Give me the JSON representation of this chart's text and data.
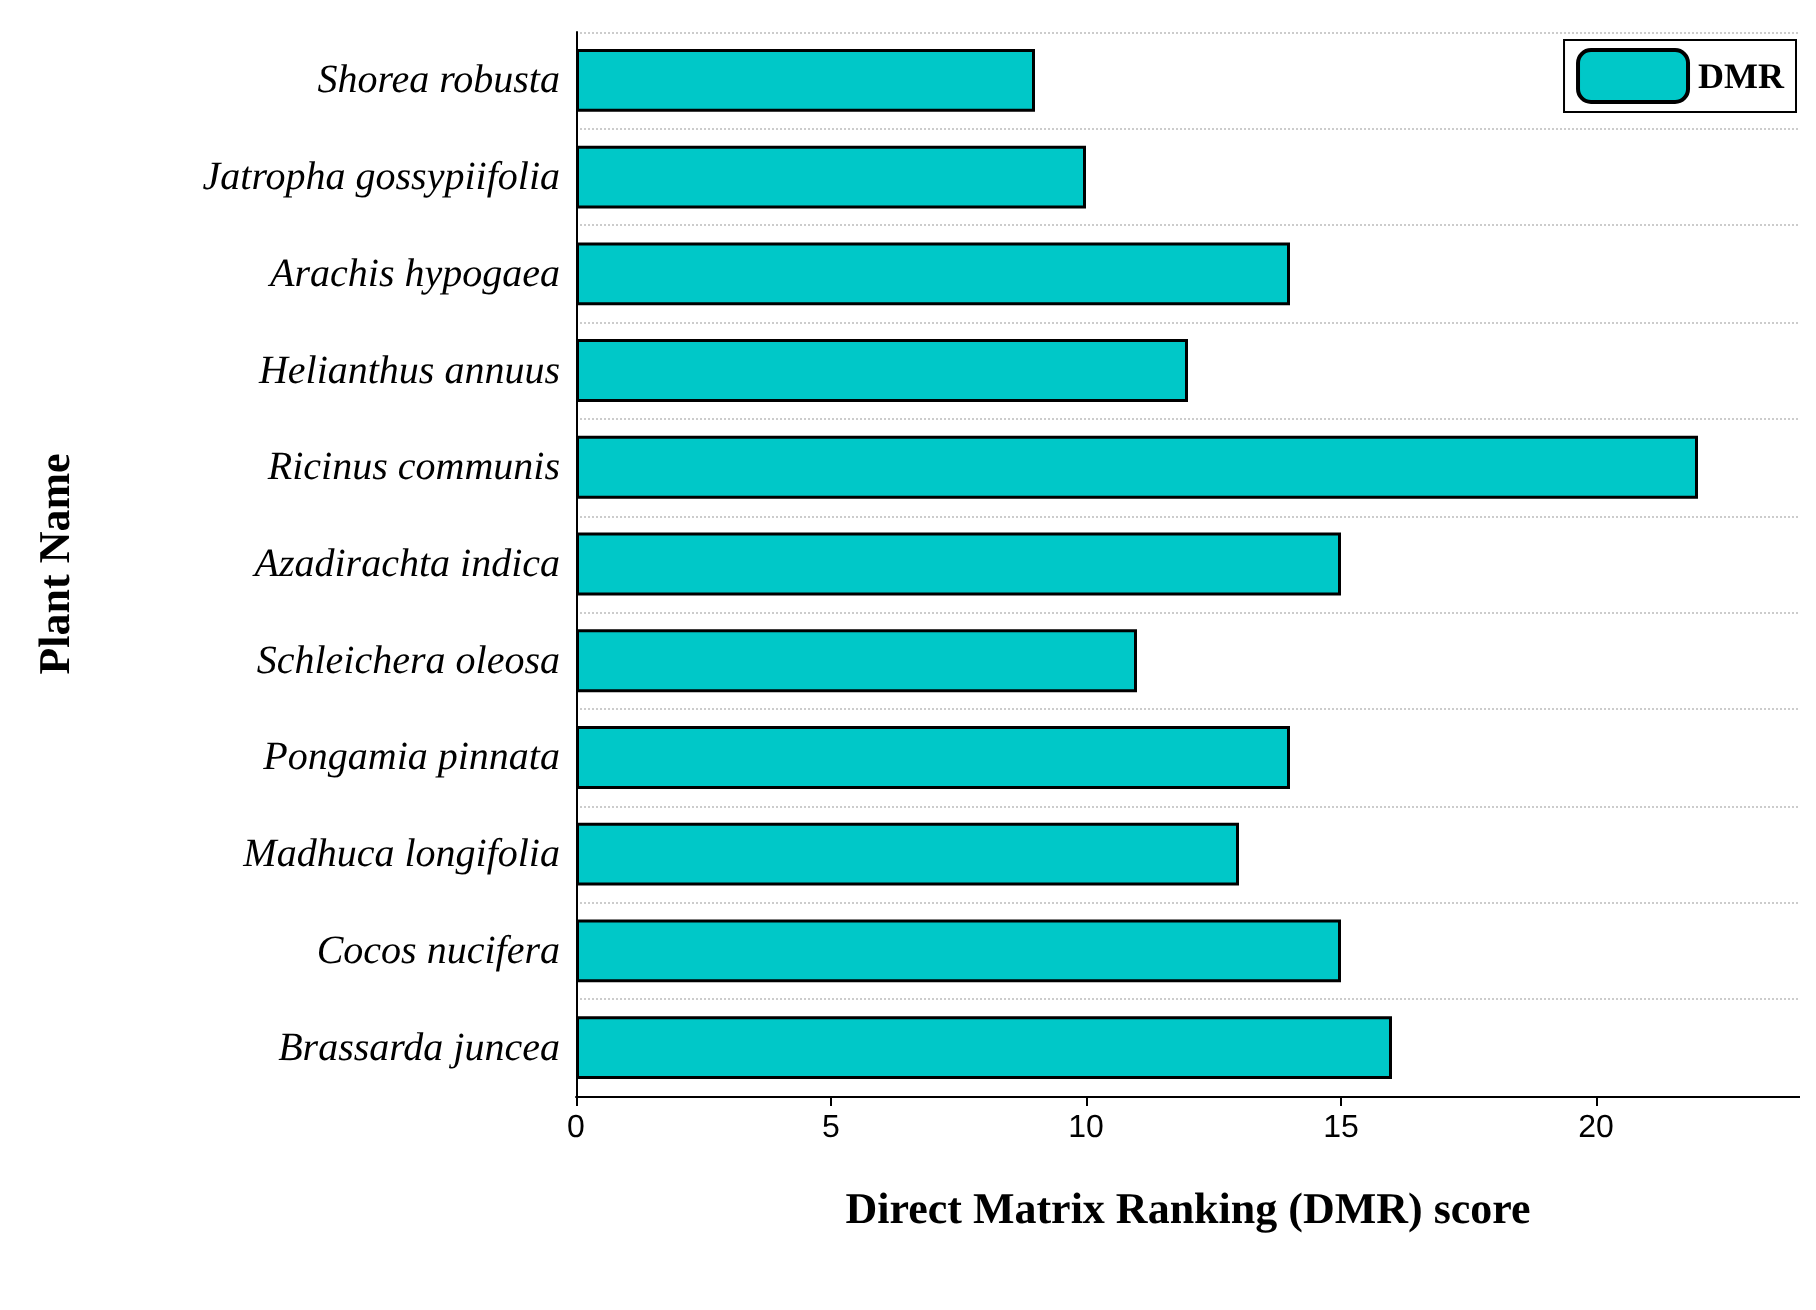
{
  "chart_data": {
    "type": "bar",
    "orientation": "horizontal",
    "xlabel": "Direct Matrix Ranking (DMR) score",
    "ylabel": "Plant Name",
    "categories": [
      "Shorea robusta",
      "Jatropha gossypiifolia",
      "Arachis hypogaea",
      "Helianthus annuus",
      "Ricinus communis",
      "Azadirachta indica",
      "Schleichera oleosa",
      "Pongamia pinnata",
      "Madhuca longifolia",
      "Cocos nucifera",
      "Brassarda juncea"
    ],
    "series": [
      {
        "name": "DMR",
        "color": "#00c8c8",
        "values": [
          9,
          10,
          14,
          12,
          22,
          15,
          11,
          14,
          13,
          15,
          16
        ]
      }
    ],
    "xlim": [
      0,
      24
    ],
    "xticks": [
      0,
      5,
      10,
      15,
      20
    ],
    "grid": "y",
    "legend": "top right"
  }
}
